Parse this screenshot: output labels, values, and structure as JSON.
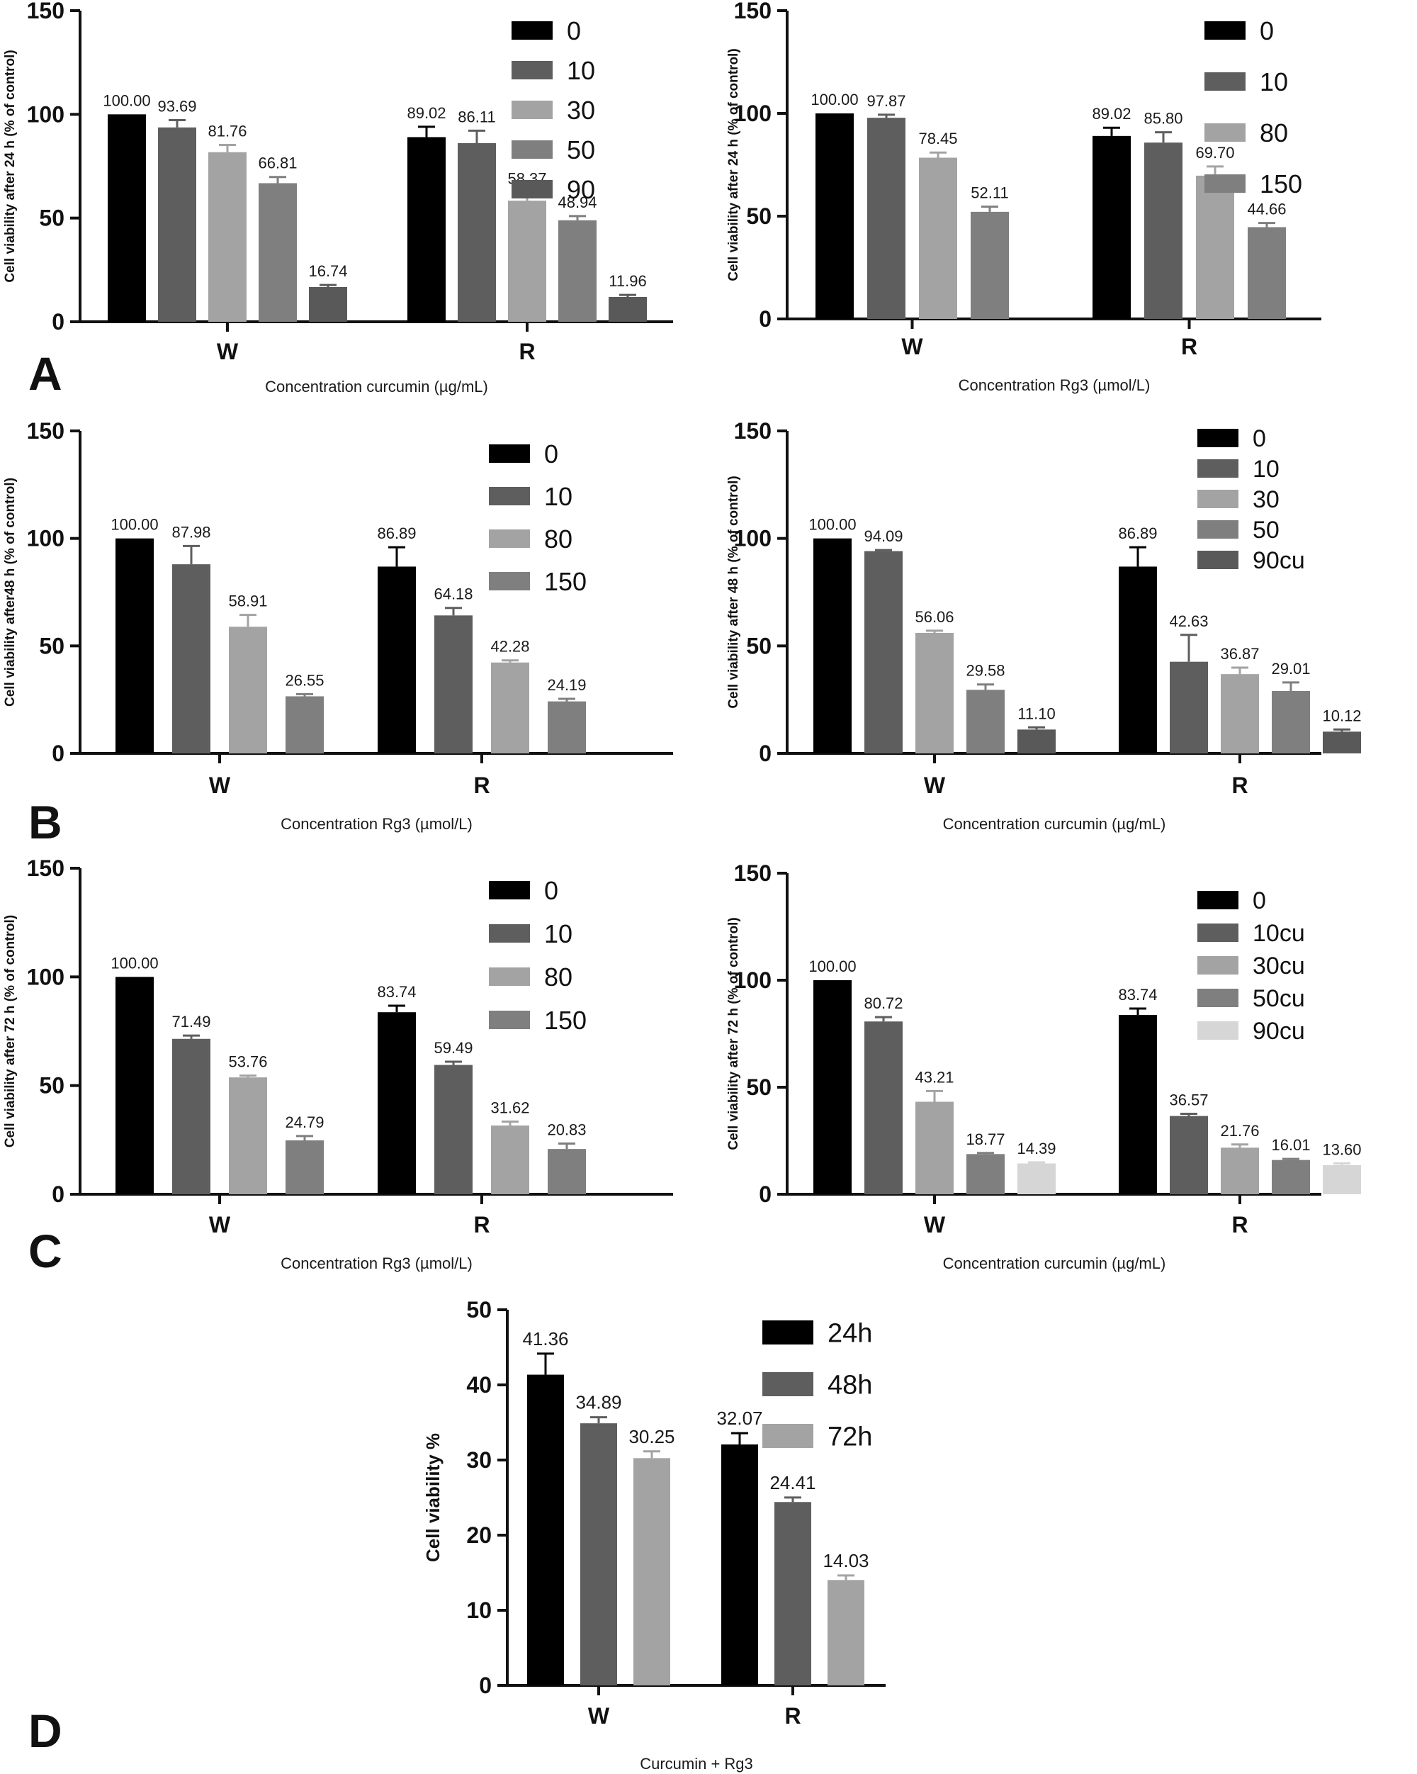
{
  "figure": {
    "panel_letters": [
      "A",
      "B",
      "C",
      "D"
    ]
  },
  "chart_data": [
    {
      "panel": "A",
      "position": "left",
      "type": "bar",
      "categories": [
        "W",
        "R"
      ],
      "xlabel": "Concentration curcumin (µg/mL)",
      "ylabel": "Cell viability after 24 h (% of control)",
      "ylim": [
        0,
        150
      ],
      "yticks": [
        0,
        50,
        100,
        150
      ],
      "series": [
        {
          "name": "0",
          "color": "#000000",
          "values": [
            100.0,
            89.02
          ],
          "labels": [
            "100.00",
            "89.02"
          ],
          "errors": [
            0,
            5
          ]
        },
        {
          "name": "10",
          "color": "#5e5e5e",
          "values": [
            93.69,
            86.11
          ],
          "labels": [
            "93.69",
            "86.11"
          ],
          "errors": [
            3.5,
            6
          ]
        },
        {
          "name": "30",
          "color": "#a3a3a3",
          "values": [
            81.76,
            58.37
          ],
          "labels": [
            "81.76",
            "58.37"
          ],
          "errors": [
            3.5,
            4
          ]
        },
        {
          "name": "50",
          "color": "#7f7f7f",
          "values": [
            66.81,
            48.94
          ],
          "labels": [
            "66.81",
            "48.94"
          ],
          "errors": [
            3,
            2
          ]
        },
        {
          "name": "90",
          "color": "#595959",
          "values": [
            16.74,
            11.96
          ],
          "labels": [
            "16.74",
            "11.96"
          ],
          "errors": [
            1,
            1
          ]
        }
      ]
    },
    {
      "panel": "A",
      "position": "right",
      "type": "bar",
      "categories": [
        "W",
        "R"
      ],
      "xlabel": "Concentration Rg3 (µmol/L)",
      "ylabel": "Cell viability after 24 h (% of control)",
      "ylim": [
        0,
        150
      ],
      "yticks": [
        0,
        50,
        100,
        150
      ],
      "series": [
        {
          "name": "0",
          "color": "#000000",
          "values": [
            100.0,
            89.02
          ],
          "labels": [
            "100.00",
            "89.02"
          ],
          "errors": [
            0,
            4
          ]
        },
        {
          "name": "10",
          "color": "#5e5e5e",
          "values": [
            97.87,
            85.8
          ],
          "labels": [
            "97.87",
            "85.80"
          ],
          "errors": [
            1.5,
            5
          ]
        },
        {
          "name": "80",
          "color": "#a3a3a3",
          "values": [
            78.45,
            69.7
          ],
          "labels": [
            "78.45",
            "69.70"
          ],
          "errors": [
            2.5,
            4.5
          ]
        },
        {
          "name": "150",
          "color": "#7f7f7f",
          "values": [
            52.11,
            44.66
          ],
          "labels": [
            "52.11",
            "44.66"
          ],
          "errors": [
            2.5,
            2
          ]
        }
      ]
    },
    {
      "panel": "B",
      "position": "left",
      "type": "bar",
      "categories": [
        "W",
        "R"
      ],
      "xlabel": "Concentration Rg3 (µmol/L)",
      "ylabel": "Cell viability after48 h (% of control)",
      "ylim": [
        0,
        150
      ],
      "yticks": [
        0,
        50,
        100,
        150
      ],
      "series": [
        {
          "name": "0",
          "color": "#000000",
          "values": [
            100.0,
            86.89
          ],
          "labels": [
            "100.00",
            "86.89"
          ],
          "errors": [
            0,
            9
          ]
        },
        {
          "name": "10",
          "color": "#5e5e5e",
          "values": [
            87.98,
            64.18
          ],
          "labels": [
            "87.98",
            "64.18"
          ],
          "errors": [
            8.5,
            3.5
          ]
        },
        {
          "name": "80",
          "color": "#a3a3a3",
          "values": [
            58.91,
            42.28
          ],
          "labels": [
            "58.91",
            "42.28"
          ],
          "errors": [
            5.5,
            1
          ]
        },
        {
          "name": "150",
          "color": "#7f7f7f",
          "values": [
            26.55,
            24.19
          ],
          "labels": [
            "26.55",
            "24.19"
          ],
          "errors": [
            1,
            1.2
          ]
        }
      ]
    },
    {
      "panel": "B",
      "position": "right",
      "type": "bar",
      "categories": [
        "W",
        "R"
      ],
      "xlabel": "Concentration curcumin (µg/mL)",
      "ylabel": "Cell viability after 48 h (% of control)",
      "ylim": [
        0,
        150
      ],
      "yticks": [
        0,
        50,
        100,
        150
      ],
      "series": [
        {
          "name": "0",
          "color": "#000000",
          "values": [
            100.0,
            86.89
          ],
          "labels": [
            "100.00",
            "86.89"
          ],
          "errors": [
            0,
            9
          ]
        },
        {
          "name": "10",
          "color": "#5e5e5e",
          "values": [
            94.09,
            42.63
          ],
          "labels": [
            "94.09",
            "42.63"
          ],
          "errors": [
            0.5,
            12.5
          ]
        },
        {
          "name": "30",
          "color": "#a3a3a3",
          "values": [
            56.06,
            36.87
          ],
          "labels": [
            "56.06",
            "36.87"
          ],
          "errors": [
            1,
            3
          ]
        },
        {
          "name": "50",
          "color": "#7f7f7f",
          "values": [
            29.58,
            29.01
          ],
          "labels": [
            "29.58",
            "29.01"
          ],
          "errors": [
            2.5,
            4
          ]
        },
        {
          "name": "90cu",
          "color": "#595959",
          "values": [
            11.1,
            10.12
          ],
          "labels": [
            "11.10",
            "10.12"
          ],
          "errors": [
            1,
            1
          ]
        }
      ]
    },
    {
      "panel": "C",
      "position": "left",
      "type": "bar",
      "categories": [
        "W",
        "R"
      ],
      "xlabel": "Concentration Rg3 (µmol/L)",
      "ylabel": "Cell viability after 72 h (% of control)",
      "ylim": [
        0,
        150
      ],
      "yticks": [
        0,
        50,
        100,
        150
      ],
      "series": [
        {
          "name": "0",
          "color": "#000000",
          "values": [
            100.0,
            83.74
          ],
          "labels": [
            "100.00",
            "83.74"
          ],
          "errors": [
            0,
            3
          ]
        },
        {
          "name": "10",
          "color": "#5e5e5e",
          "values": [
            71.49,
            59.49
          ],
          "labels": [
            "71.49",
            "59.49"
          ],
          "errors": [
            1.5,
            1.5
          ]
        },
        {
          "name": "80",
          "color": "#a3a3a3",
          "values": [
            53.76,
            31.62
          ],
          "labels": [
            "53.76",
            "31.62"
          ],
          "errors": [
            0.8,
            1.8
          ]
        },
        {
          "name": "150",
          "color": "#7f7f7f",
          "values": [
            24.79,
            20.83
          ],
          "labels": [
            "24.79",
            "20.83"
          ],
          "errors": [
            2,
            2.5
          ]
        }
      ]
    },
    {
      "panel": "C",
      "position": "right",
      "type": "bar",
      "categories": [
        "W",
        "R"
      ],
      "xlabel": "Concentration curcumin (µg/mL)",
      "ylabel": "Cell viability after 72 h (% of control)",
      "ylim": [
        0,
        150
      ],
      "yticks": [
        0,
        50,
        100,
        150
      ],
      "series": [
        {
          "name": "0",
          "color": "#000000",
          "values": [
            100.0,
            83.74
          ],
          "labels": [
            "100.00",
            "83.74"
          ],
          "errors": [
            0,
            3
          ]
        },
        {
          "name": "10cu",
          "color": "#5e5e5e",
          "values": [
            80.72,
            36.57
          ],
          "labels": [
            "80.72",
            "36.57"
          ],
          "errors": [
            2,
            1
          ]
        },
        {
          "name": "30cu",
          "color": "#a3a3a3",
          "values": [
            43.21,
            21.76
          ],
          "labels": [
            "43.21",
            "21.76"
          ],
          "errors": [
            5,
            1.5
          ]
        },
        {
          "name": "50cu",
          "color": "#7f7f7f",
          "values": [
            18.77,
            16.01
          ],
          "labels": [
            "18.77",
            "16.01"
          ],
          "errors": [
            0.5,
            0.5
          ]
        },
        {
          "name": "90cu",
          "color": "#d6d6d6",
          "values": [
            14.39,
            13.6
          ],
          "labels": [
            "14.39",
            "13.60"
          ],
          "errors": [
            0.5,
            0.8
          ]
        }
      ]
    },
    {
      "panel": "D",
      "position": "center",
      "type": "bar",
      "categories": [
        "W",
        "R"
      ],
      "xlabel": "Curcumin + Rg3",
      "ylabel": "Cell viability  %",
      "ylim": [
        0,
        50
      ],
      "yticks": [
        0,
        10,
        20,
        30,
        40,
        50
      ],
      "series": [
        {
          "name": "24h",
          "color": "#000000",
          "values": [
            41.36,
            32.07
          ],
          "labels": [
            "41.36",
            "32.07"
          ],
          "errors": [
            2.8,
            1.5
          ]
        },
        {
          "name": "48h",
          "color": "#5e5e5e",
          "values": [
            34.89,
            24.41
          ],
          "labels": [
            "34.89",
            "24.41"
          ],
          "errors": [
            0.8,
            0.6
          ]
        },
        {
          "name": "72h",
          "color": "#a3a3a3",
          "values": [
            30.25,
            14.03
          ],
          "labels": [
            "30.25",
            "14.03"
          ],
          "errors": [
            0.9,
            0.6
          ]
        }
      ]
    }
  ]
}
